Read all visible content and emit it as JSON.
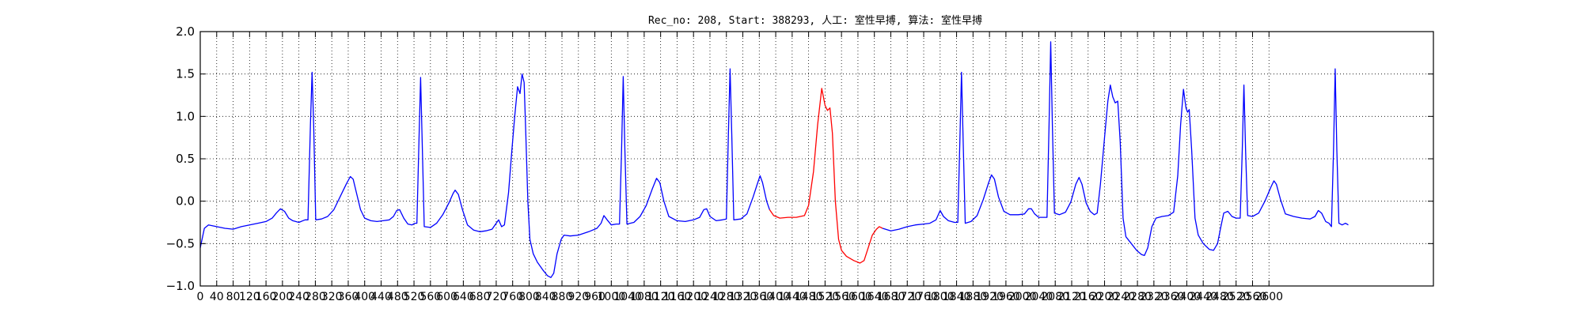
{
  "chart_data": {
    "type": "line",
    "title": "Rec_no: 208, Start: 388293, 人工: 室性早搏, 算法: 室性早搏",
    "xlabel": "",
    "ylabel": "",
    "xlim": [
      0,
      3000
    ],
    "ylim": [
      -1.0,
      2.0
    ],
    "y_ticks": [
      -1.0,
      -0.5,
      0.0,
      0.5,
      1.0,
      1.5,
      2.0
    ],
    "y_tick_labels": [
      "−1.0",
      "−0.5",
      "0.0",
      "0.5",
      "1.0",
      "1.5",
      "2.0"
    ],
    "x_ticks": [
      0,
      40,
      80,
      120,
      160,
      200,
      240,
      280,
      320,
      360,
      400,
      440,
      480,
      520,
      560,
      600,
      640,
      680,
      720,
      760,
      800,
      840,
      880,
      920,
      960,
      1000,
      1040,
      1080,
      1120,
      1160,
      1200,
      1240,
      1280,
      1320,
      1360,
      1400,
      1440,
      1480,
      1520,
      1560,
      1600,
      1640,
      1680,
      1720,
      1760,
      1800,
      1840,
      1880,
      1920,
      1960,
      2000,
      2040,
      2080,
      2120,
      2160,
      2200,
      2240,
      2280,
      2320,
      2360,
      2400,
      2440,
      2480,
      2520,
      2560,
      2600
    ],
    "grid": true,
    "series": [
      {
        "color": "#0000ff",
        "points": [
          [
            0,
            -0.55
          ],
          [
            10,
            -0.32
          ],
          [
            20,
            -0.28
          ],
          [
            40,
            -0.3
          ],
          [
            60,
            -0.32
          ],
          [
            80,
            -0.33
          ],
          [
            100,
            -0.3
          ],
          [
            120,
            -0.28
          ],
          [
            140,
            -0.26
          ],
          [
            160,
            -0.24
          ],
          [
            175,
            -0.2
          ],
          [
            185,
            -0.14
          ],
          [
            195,
            -0.09
          ],
          [
            205,
            -0.12
          ],
          [
            215,
            -0.2
          ],
          [
            225,
            -0.23
          ],
          [
            240,
            -0.25
          ],
          [
            255,
            -0.22
          ],
          [
            262,
            -0.22
          ],
          [
            268,
            0.9
          ],
          [
            272,
            1.52
          ],
          [
            276,
            0.9
          ],
          [
            281,
            -0.22
          ],
          [
            295,
            -0.21
          ],
          [
            310,
            -0.18
          ],
          [
            325,
            -0.1
          ],
          [
            340,
            0.05
          ],
          [
            355,
            0.2
          ],
          [
            365,
            0.29
          ],
          [
            372,
            0.26
          ],
          [
            380,
            0.1
          ],
          [
            390,
            -0.1
          ],
          [
            400,
            -0.2
          ],
          [
            415,
            -0.23
          ],
          [
            430,
            -0.24
          ],
          [
            445,
            -0.23
          ],
          [
            460,
            -0.22
          ],
          [
            470,
            -0.18
          ],
          [
            478,
            -0.11
          ],
          [
            485,
            -0.1
          ],
          [
            495,
            -0.2
          ],
          [
            505,
            -0.27
          ],
          [
            515,
            -0.28
          ],
          [
            522,
            -0.26
          ],
          [
            527,
            -0.26
          ],
          [
            532,
            0.7
          ],
          [
            536,
            1.46
          ],
          [
            540,
            0.7
          ],
          [
            545,
            -0.3
          ],
          [
            560,
            -0.31
          ],
          [
            575,
            -0.26
          ],
          [
            590,
            -0.16
          ],
          [
            605,
            -0.02
          ],
          [
            615,
            0.09
          ],
          [
            620,
            0.13
          ],
          [
            628,
            0.08
          ],
          [
            638,
            -0.1
          ],
          [
            650,
            -0.28
          ],
          [
            665,
            -0.34
          ],
          [
            680,
            -0.36
          ],
          [
            695,
            -0.35
          ],
          [
            710,
            -0.33
          ],
          [
            720,
            -0.26
          ],
          [
            726,
            -0.22
          ],
          [
            733,
            -0.3
          ],
          [
            740,
            -0.28
          ],
          [
            750,
            0.1
          ],
          [
            758,
            0.6
          ],
          [
            765,
            1.0
          ],
          [
            772,
            1.35
          ],
          [
            778,
            1.27
          ],
          [
            783,
            1.5
          ],
          [
            788,
            1.4
          ],
          [
            792,
            0.8
          ],
          [
            797,
            0.0
          ],
          [
            802,
            -0.45
          ],
          [
            810,
            -0.62
          ],
          [
            820,
            -0.72
          ],
          [
            835,
            -0.82
          ],
          [
            845,
            -0.88
          ],
          [
            853,
            -0.9
          ],
          [
            860,
            -0.85
          ],
          [
            868,
            -0.62
          ],
          [
            878,
            -0.45
          ],
          [
            885,
            -0.4
          ],
          [
            900,
            -0.41
          ],
          [
            920,
            -0.4
          ],
          [
            945,
            -0.36
          ],
          [
            965,
            -0.32
          ],
          [
            975,
            -0.26
          ],
          [
            982,
            -0.17
          ],
          [
            990,
            -0.22
          ],
          [
            1000,
            -0.28
          ],
          [
            1012,
            -0.27
          ],
          [
            1020,
            -0.27
          ],
          [
            1025,
            0.6
          ],
          [
            1029,
            1.47
          ],
          [
            1033,
            0.6
          ],
          [
            1038,
            -0.27
          ],
          [
            1055,
            -0.25
          ],
          [
            1070,
            -0.18
          ],
          [
            1085,
            -0.05
          ],
          [
            1100,
            0.15
          ],
          [
            1110,
            0.27
          ],
          [
            1118,
            0.22
          ],
          [
            1128,
            0.0
          ],
          [
            1140,
            -0.18
          ],
          [
            1160,
            -0.23
          ],
          [
            1180,
            -0.24
          ],
          [
            1200,
            -0.22
          ],
          [
            1215,
            -0.19
          ],
          [
            1225,
            -0.1
          ],
          [
            1232,
            -0.09
          ],
          [
            1240,
            -0.18
          ],
          [
            1255,
            -0.23
          ],
          [
            1270,
            -0.22
          ],
          [
            1280,
            -0.21
          ],
          [
            1285,
            0.8
          ],
          [
            1289,
            1.56
          ],
          [
            1293,
            0.8
          ],
          [
            1298,
            -0.22
          ],
          [
            1315,
            -0.21
          ],
          [
            1330,
            -0.15
          ],
          [
            1345,
            0.05
          ],
          [
            1355,
            0.2
          ],
          [
            1362,
            0.3
          ],
          [
            1368,
            0.22
          ],
          [
            1378,
            0.0
          ],
          [
            1385,
            -0.1
          ]
        ]
      },
      {
        "color": "#ff0000",
        "points": [
          [
            1385,
            -0.1
          ],
          [
            1395,
            -0.17
          ],
          [
            1410,
            -0.2
          ],
          [
            1430,
            -0.19
          ],
          [
            1450,
            -0.19
          ],
          [
            1470,
            -0.17
          ],
          [
            1480,
            -0.05
          ],
          [
            1492,
            0.35
          ],
          [
            1502,
            0.9
          ],
          [
            1512,
            1.33
          ],
          [
            1520,
            1.13
          ],
          [
            1526,
            1.07
          ],
          [
            1532,
            1.1
          ],
          [
            1538,
            0.8
          ],
          [
            1545,
            0.0
          ],
          [
            1553,
            -0.45
          ],
          [
            1560,
            -0.58
          ],
          [
            1572,
            -0.65
          ],
          [
            1590,
            -0.7
          ],
          [
            1605,
            -0.73
          ],
          [
            1615,
            -0.7
          ],
          [
            1625,
            -0.55
          ],
          [
            1635,
            -0.4
          ],
          [
            1645,
            -0.33
          ],
          [
            1652,
            -0.3
          ],
          [
            1660,
            -0.32
          ]
        ]
      },
      {
        "color": "#0000ff",
        "points": [
          [
            1660,
            -0.32
          ],
          [
            1680,
            -0.35
          ],
          [
            1700,
            -0.33
          ],
          [
            1720,
            -0.3
          ],
          [
            1740,
            -0.28
          ],
          [
            1760,
            -0.27
          ],
          [
            1775,
            -0.26
          ],
          [
            1790,
            -0.22
          ],
          [
            1800,
            -0.11
          ],
          [
            1808,
            -0.18
          ],
          [
            1820,
            -0.23
          ],
          [
            1835,
            -0.25
          ],
          [
            1843,
            -0.25
          ],
          [
            1848,
            0.7
          ],
          [
            1852,
            1.52
          ],
          [
            1856,
            0.7
          ],
          [
            1861,
            -0.26
          ],
          [
            1875,
            -0.24
          ],
          [
            1890,
            -0.17
          ],
          [
            1905,
            0.02
          ],
          [
            1918,
            0.22
          ],
          [
            1925,
            0.31
          ],
          [
            1932,
            0.26
          ],
          [
            1942,
            0.05
          ],
          [
            1955,
            -0.12
          ],
          [
            1970,
            -0.16
          ],
          [
            1990,
            -0.16
          ],
          [
            2005,
            -0.15
          ],
          [
            2015,
            -0.09
          ],
          [
            2022,
            -0.09
          ],
          [
            2030,
            -0.15
          ],
          [
            2040,
            -0.19
          ],
          [
            2050,
            -0.19
          ],
          [
            2060,
            -0.19
          ],
          [
            2065,
            0.9
          ],
          [
            2069,
            1.88
          ],
          [
            2073,
            0.9
          ],
          [
            2078,
            -0.14
          ],
          [
            2090,
            -0.16
          ],
          [
            2105,
            -0.13
          ],
          [
            2118,
            -0.01
          ],
          [
            2130,
            0.2
          ],
          [
            2138,
            0.28
          ],
          [
            2145,
            0.2
          ],
          [
            2155,
            -0.02
          ],
          [
            2165,
            -0.12
          ],
          [
            2175,
            -0.16
          ],
          [
            2182,
            -0.14
          ],
          [
            2190,
            0.2
          ],
          [
            2200,
            0.75
          ],
          [
            2208,
            1.18
          ],
          [
            2214,
            1.37
          ],
          [
            2220,
            1.23
          ],
          [
            2226,
            1.16
          ],
          [
            2232,
            1.18
          ],
          [
            2238,
            0.7
          ],
          [
            2245,
            -0.2
          ],
          [
            2252,
            -0.42
          ],
          [
            2265,
            -0.5
          ],
          [
            2278,
            -0.58
          ],
          [
            2290,
            -0.63
          ],
          [
            2297,
            -0.64
          ],
          [
            2305,
            -0.55
          ],
          [
            2315,
            -0.3
          ],
          [
            2325,
            -0.2
          ],
          [
            2340,
            -0.18
          ],
          [
            2355,
            -0.17
          ],
          [
            2368,
            -0.13
          ],
          [
            2378,
            0.3
          ],
          [
            2385,
            0.9
          ],
          [
            2392,
            1.32
          ],
          [
            2398,
            1.1
          ],
          [
            2402,
            1.05
          ],
          [
            2406,
            1.08
          ],
          [
            2412,
            0.6
          ],
          [
            2420,
            -0.2
          ],
          [
            2428,
            -0.4
          ],
          [
            2440,
            -0.5
          ],
          [
            2455,
            -0.57
          ],
          [
            2465,
            -0.58
          ],
          [
            2475,
            -0.5
          ],
          [
            2483,
            -0.3
          ],
          [
            2490,
            -0.14
          ],
          [
            2500,
            -0.12
          ],
          [
            2510,
            -0.18
          ],
          [
            2520,
            -0.2
          ],
          [
            2530,
            -0.2
          ],
          [
            2535,
            0.6
          ],
          [
            2539,
            1.37
          ],
          [
            2543,
            0.6
          ],
          [
            2548,
            -0.17
          ],
          [
            2560,
            -0.18
          ],
          [
            2575,
            -0.14
          ],
          [
            2590,
            0.0
          ],
          [
            2605,
            0.17
          ],
          [
            2612,
            0.24
          ],
          [
            2618,
            0.2
          ],
          [
            2628,
            0.02
          ],
          [
            2640,
            -0.15
          ],
          [
            2660,
            -0.18
          ],
          [
            2680,
            -0.2
          ],
          [
            2700,
            -0.21
          ],
          [
            2712,
            -0.18
          ],
          [
            2720,
            -0.11
          ],
          [
            2728,
            -0.14
          ],
          [
            2738,
            -0.24
          ],
          [
            2746,
            -0.26
          ],
          [
            2752,
            -0.3
          ],
          [
            2757,
            0.6
          ],
          [
            2761,
            1.56
          ],
          [
            2765,
            0.6
          ],
          [
            2770,
            -0.26
          ],
          [
            2778,
            -0.28
          ],
          [
            2786,
            -0.26
          ],
          [
            2793,
            -0.28
          ]
        ]
      }
    ]
  }
}
